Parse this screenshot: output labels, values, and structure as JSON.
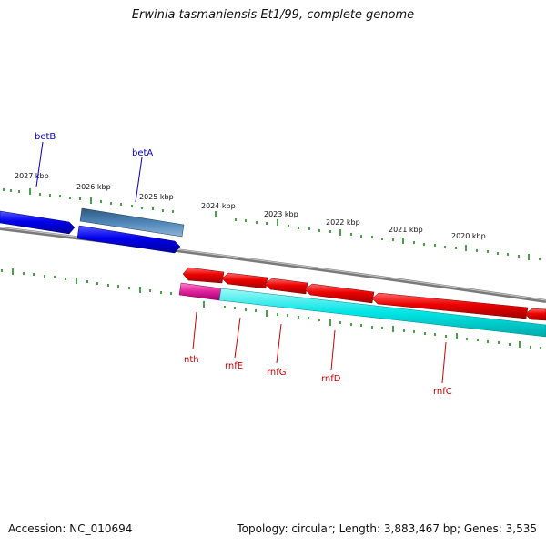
{
  "header": {
    "title": "Erwinia tasmaniensis Et1/99, complete genome"
  },
  "footer": {
    "accession": "Accession: NC_010694",
    "summary": "Topology: circular; Length: 3,883,467 bp; Genes: 3,535"
  },
  "scale": {
    "unit": "kbp",
    "labels": [
      "2027 kbp",
      "2026 kbp",
      "2025 kbp",
      "2024 kbp",
      "2023 kbp",
      "2022 kbp",
      "2021 kbp",
      "2020 kbp"
    ]
  },
  "genes": {
    "forward": [
      {
        "name": "betB",
        "color": "#0000ee"
      },
      {
        "name": "betA",
        "color": "#0000ee"
      }
    ],
    "reverse": [
      {
        "name": "nth",
        "color": "#cc0000"
      },
      {
        "name": "rnfE",
        "color": "#cc0000"
      },
      {
        "name": "rnfG",
        "color": "#cc0000"
      },
      {
        "name": "rnfD",
        "color": "#cc0000"
      },
      {
        "name": "rnfC",
        "color": "#cc0000"
      }
    ]
  },
  "colors": {
    "forward_cds": "#0000ee",
    "reverse_cds": "#ee0000",
    "forward_feature": "#4682b4",
    "reverse_feature_cyan": "#00e5e5",
    "reverse_feature_magenta": "#e0209a",
    "backbone": "#888888",
    "ticks": "#1a8a1a"
  }
}
